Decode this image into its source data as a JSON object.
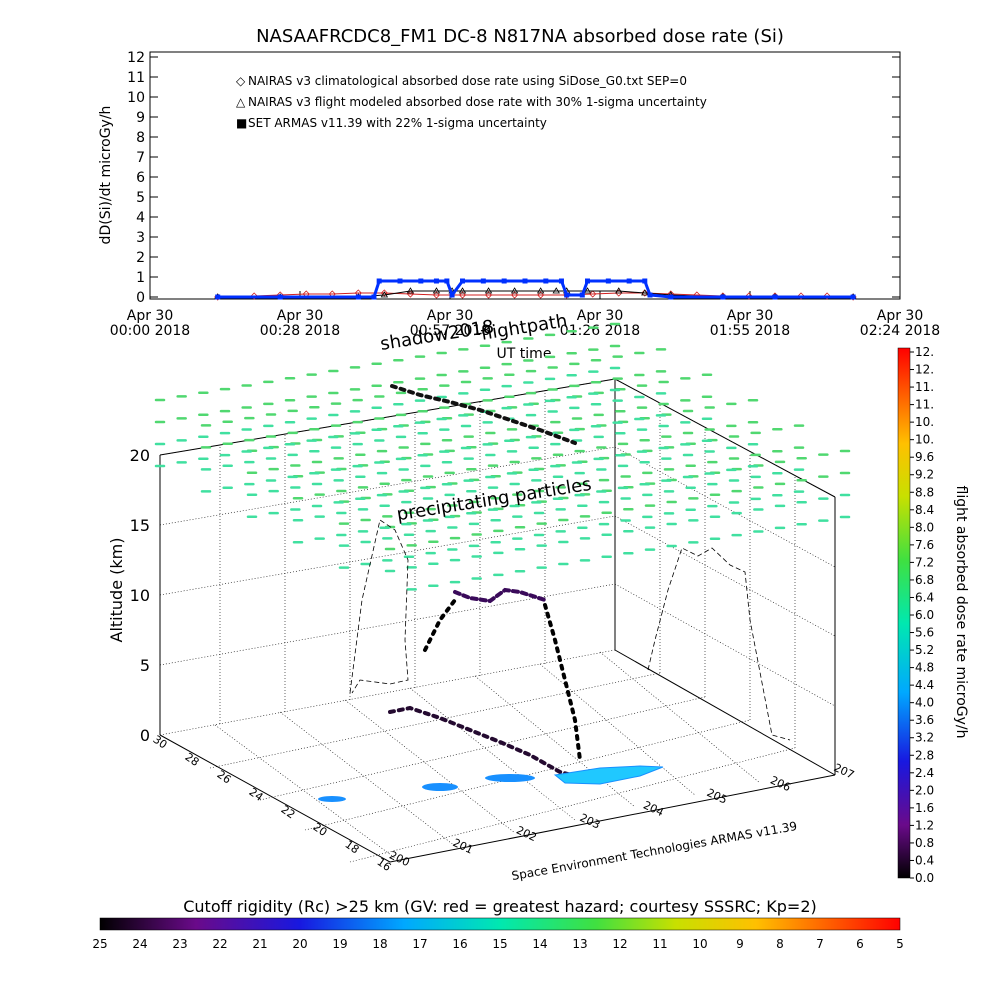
{
  "top_chart": {
    "title": "NASAAFRCDC8_FM1 DC-8   N817NA absorbed dose rate (Si)",
    "ylabel": "dD(Si)/dt microGy/h",
    "xlabel": "UT time",
    "ylim": [
      0,
      12
    ],
    "yticks": [
      "0",
      "1",
      "2",
      "3",
      "4",
      "5",
      "6",
      "7",
      "8",
      "9",
      "10",
      "11",
      "12"
    ],
    "xticks": [
      {
        "line1": "Apr 30",
        "line2": "00:00 2018",
        "minutes": 0
      },
      {
        "line1": "Apr 30",
        "line2": "00:28 2018",
        "minutes": 28.8
      },
      {
        "line1": "Apr 30",
        "line2": "00:57 2018",
        "minutes": 57.6
      },
      {
        "line1": "Apr 30",
        "line2": "01:26 2018",
        "minutes": 86.4
      },
      {
        "line1": "Apr 30",
        "line2": "01:55 2018",
        "minutes": 115.2
      },
      {
        "line1": "Apr 30",
        "line2": "02:24 2018",
        "minutes": 144
      }
    ],
    "legend": [
      {
        "symbol": "◇",
        "label": "NAIRAS v3 climatological absorbed dose rate using SiDose_G0.txt SEP=0",
        "color": "#d02020"
      },
      {
        "symbol": "△",
        "label": "NAIRAS v3 flight modeled absorbed dose rate with 30% 1-sigma uncertainty",
        "color": "#000000"
      },
      {
        "symbol": "■",
        "label": "SET ARMAS v11.39 with 22% 1-sigma uncertainty",
        "color": "#0030ff"
      }
    ]
  },
  "chart_data": [
    {
      "type": "line",
      "title": "NASAAFRCDC8_FM1 DC-8   N817NA absorbed dose rate (Si)",
      "xlabel": "UT time",
      "ylabel": "dD(Si)/dt microGy/h",
      "xlim_minutes": [
        0,
        144
      ],
      "ylim": [
        0,
        12
      ],
      "series": [
        {
          "name": "NAIRAS v3 climatological absorbed dose rate using SiDose_G0.txt SEP=0",
          "color": "#d02020",
          "x_minutes": [
            13,
            20,
            25,
            30,
            35,
            40,
            45,
            50,
            55,
            60,
            65,
            70,
            75,
            80,
            85,
            90,
            95,
            100,
            105,
            110,
            115,
            120,
            125,
            130,
            135
          ],
          "y": [
            0,
            0.05,
            0.1,
            0.15,
            0.15,
            0.2,
            0.2,
            0.15,
            0.1,
            0.1,
            0.1,
            0.1,
            0.1,
            0.1,
            0.15,
            0.2,
            0.2,
            0.15,
            0.1,
            0.05,
            0.05,
            0.05,
            0.05,
            0.05,
            0
          ]
        },
        {
          "name": "NAIRAS v3 flight modeled absorbed dose rate with 30% 1-sigma uncertainty",
          "color": "#000000",
          "x_minutes": [
            13,
            25,
            40,
            45,
            50,
            55,
            58,
            60,
            65,
            70,
            75,
            78,
            80,
            84,
            90,
            95,
            100,
            110,
            120,
            135
          ],
          "y": [
            0,
            0,
            0,
            0.1,
            0.3,
            0.3,
            0.3,
            0.3,
            0.3,
            0.3,
            0.3,
            0.3,
            0.3,
            0.3,
            0.3,
            0.2,
            0.1,
            0,
            0,
            0
          ]
        },
        {
          "name": "SET ARMAS v11.39 with 22% 1-sigma uncertainty",
          "color": "#0030ff",
          "x_minutes": [
            13,
            25,
            40,
            43,
            44,
            48,
            52,
            55,
            57,
            58,
            60,
            64,
            68,
            72,
            76,
            79,
            80,
            83,
            84,
            88,
            92,
            95,
            96,
            100,
            110,
            120,
            135
          ],
          "y": [
            0,
            0,
            0,
            0,
            0.8,
            0.8,
            0.8,
            0.8,
            0.8,
            0.1,
            0.8,
            0.8,
            0.8,
            0.8,
            0.8,
            0.8,
            0.1,
            0.1,
            0.8,
            0.8,
            0.8,
            0.8,
            0.1,
            0,
            0,
            0,
            0
          ]
        }
      ]
    }
  ],
  "scene": {
    "ylabel": "Altitude (km)",
    "z_ticks": [
      "0",
      "5",
      "10",
      "15",
      "20"
    ],
    "lat_ticks": [
      "30",
      "28",
      "26",
      "24",
      "22",
      "20",
      "18",
      "16"
    ],
    "lon_ticks": [
      "200",
      "201",
      "202",
      "203",
      "204",
      "205",
      "206",
      "207"
    ],
    "label_precip": "precipitating particles",
    "label_flight": "flightpath",
    "label_shadow": "shadow2018",
    "label_set": "Space Environment Technologies ARMAS v11.39"
  },
  "dose_bar": {
    "label": "flight absorbed dose rate microGy/h",
    "ticks": [
      "12.",
      "12.",
      "11.",
      "11.",
      "10.",
      "10.",
      "9.6",
      "9.2",
      "8.8",
      "8.4",
      "8.0",
      "7.6",
      "7.2",
      "6.8",
      "6.4",
      "6.0",
      "5.6",
      "5.2",
      "4.8",
      "4.4",
      "4.0",
      "3.6",
      "3.2",
      "2.8",
      "2.4",
      "2.0",
      "1.6",
      "1.2",
      "0.8",
      "0.4",
      "0.0"
    ]
  },
  "cutoff_bar": {
    "label": "Cutoff rigidity (Rc) >25 km (GV: red = greatest hazard; courtesy SSSRC; Kp=2)",
    "ticks": [
      "25",
      "24",
      "23",
      "22",
      "21",
      "20",
      "19",
      "18",
      "17",
      "16",
      "15",
      "14",
      "13",
      "12",
      "11",
      "10",
      "9",
      "8",
      "7",
      "6",
      "5"
    ]
  },
  "colors": {
    "climatological": "#d02020",
    "modeled": "#000000",
    "armas": "#0030ff",
    "precip": "#40d890",
    "grid": "#000000"
  }
}
